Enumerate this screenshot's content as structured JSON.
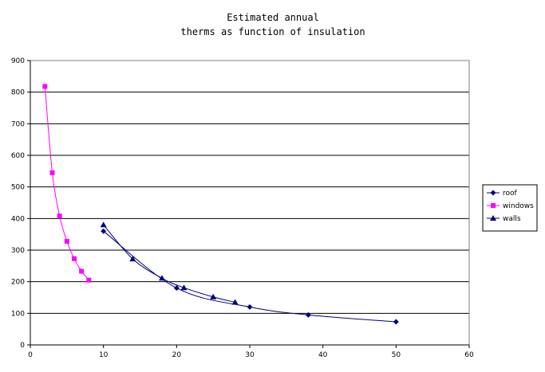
{
  "chart_data": {
    "type": "scatter",
    "title_lines": [
      "Estimated annual",
      "therms as function of insulation"
    ],
    "xlabel": "",
    "ylabel": "",
    "xlim": [
      0,
      60
    ],
    "ylim": [
      0,
      900
    ],
    "x_ticks": [
      0,
      10,
      20,
      30,
      40,
      50,
      60
    ],
    "y_ticks": [
      0,
      100,
      200,
      300,
      400,
      500,
      600,
      700,
      800,
      900
    ],
    "grid": "horizontal",
    "legend_position": "right",
    "series": [
      {
        "name": "roof",
        "color": "#000080",
        "marker": "diamond",
        "smooth": true,
        "x": [
          10,
          20,
          30,
          38,
          50
        ],
        "y": [
          360,
          180,
          120,
          95,
          73
        ]
      },
      {
        "name": "windows",
        "color": "#ff00ff",
        "marker": "square",
        "smooth": true,
        "x": [
          2,
          3,
          4,
          5,
          6,
          7,
          8
        ],
        "y": [
          818,
          545,
          408,
          328,
          273,
          233,
          205
        ]
      },
      {
        "name": "walls",
        "color": "#000080",
        "marker": "triangle",
        "smooth": true,
        "x": [
          10,
          14,
          18,
          21,
          25,
          28
        ],
        "y": [
          380,
          272,
          211,
          181,
          152,
          135
        ]
      }
    ]
  }
}
